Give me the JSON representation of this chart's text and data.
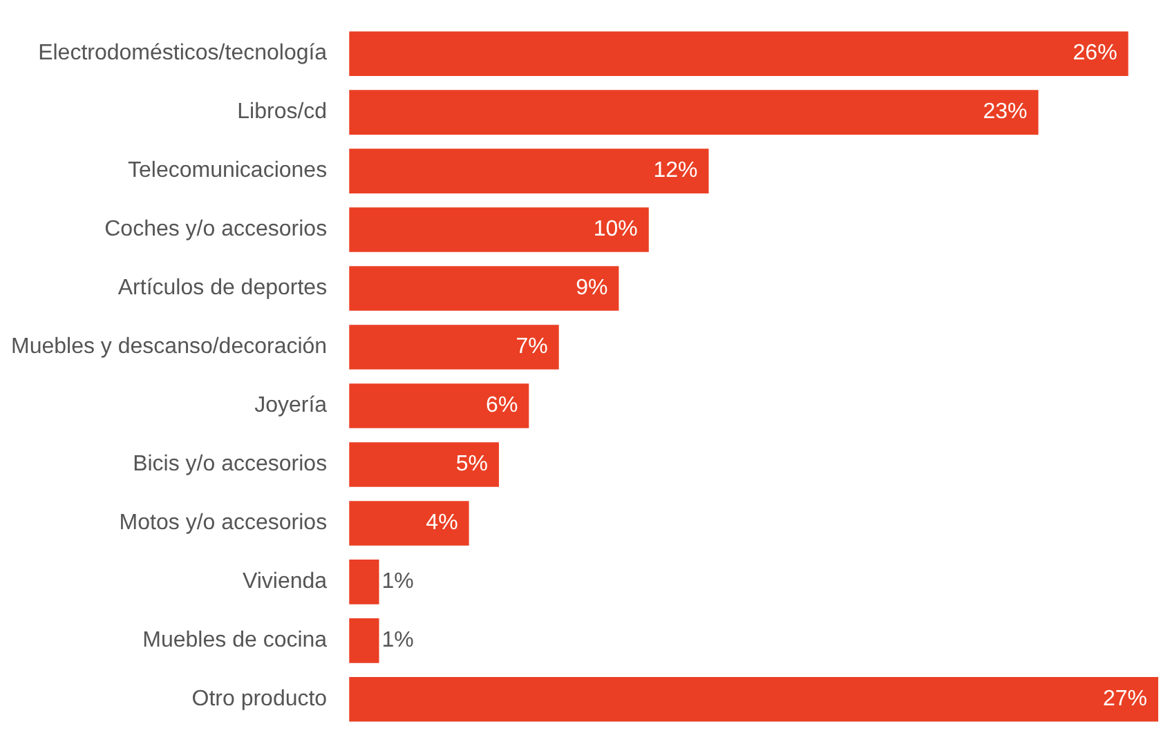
{
  "chart_data": {
    "type": "bar",
    "orientation": "horizontal",
    "color": "#ea3f24",
    "categories": [
      "Electrodomésticos/tecnología",
      "Libros/cd",
      "Telecomunicaciones",
      "Coches y/o accesorios",
      "Artículos de deportes",
      "Muebles y descanso/decoración",
      "Joyería",
      "Bicis y/o accesorios",
      "Motos y/o accesorios",
      "Vivienda",
      "Muebles de cocina",
      "Otro producto"
    ],
    "values": [
      26,
      23,
      12,
      10,
      9,
      7,
      6,
      5,
      4,
      1,
      1,
      27
    ],
    "value_labels": [
      "26%",
      "23%",
      "12%",
      "10%",
      "9%",
      "7%",
      "6%",
      "5%",
      "4%",
      "1%",
      "1%",
      "27%"
    ],
    "legend": false,
    "tick_labels": "y"
  }
}
